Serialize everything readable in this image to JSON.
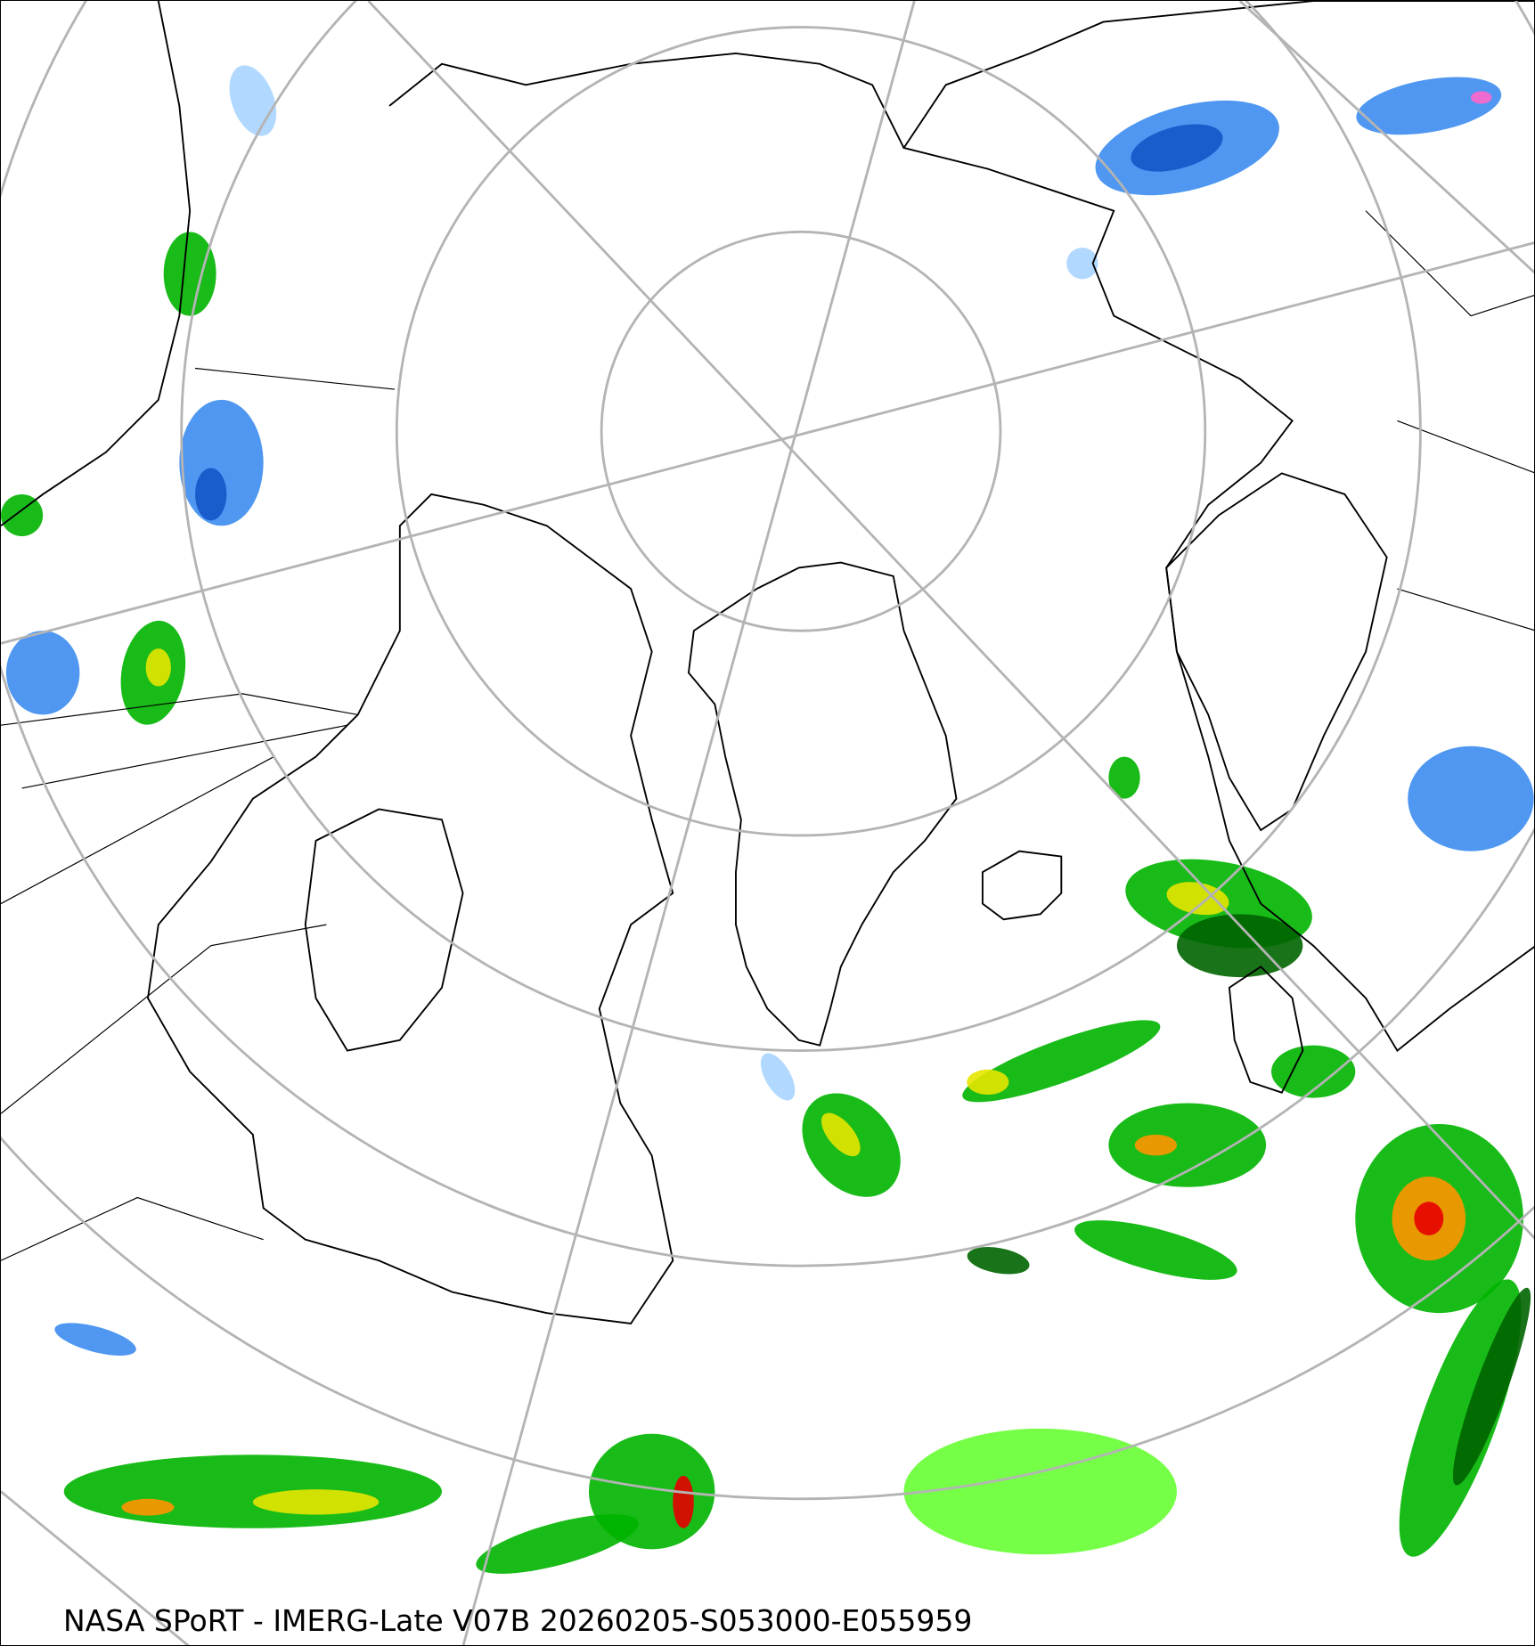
{
  "caption": "NASA SPoRT - IMERG-Late V07B 20260205-S053000-E055959",
  "projection": "north polar stereographic",
  "colors": {
    "graticule": "#b4b4b4",
    "coastline": "#000000",
    "light_rain_blue": "#a8d4ff",
    "snow_blue": "#3c8cf0",
    "snow_dark_blue": "#1455c8",
    "rain_light_green": "#66ff33",
    "rain_green": "#00b400",
    "rain_dark_green": "#006400",
    "rain_yellow": "#e6e600",
    "rain_orange": "#ff9600",
    "rain_red": "#e60000",
    "snow_pink": "#ff66cc"
  }
}
